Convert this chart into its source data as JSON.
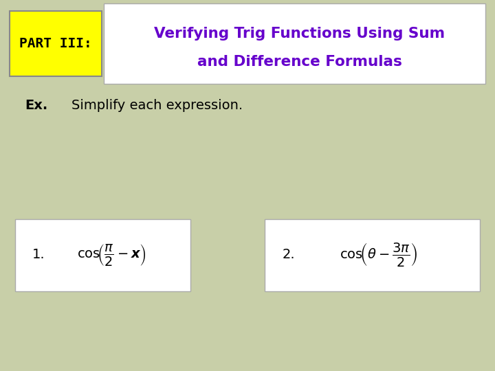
{
  "bg_color": "#c8cfa8",
  "header_box_color": "#ffffff",
  "part_label": "PART III:",
  "part_label_bg": "#ffff00",
  "part_label_color": "#000000",
  "title_line1": "Verifying Trig Functions Using Sum",
  "title_line2": "and Difference Formulas",
  "title_color": "#6600cc",
  "ex_label": "Ex.",
  "ex_text": "Simplify each expression.",
  "ex_color": "#000000",
  "expr1_num": "1.",
  "expr2_num": "2.",
  "box_color": "#ffffff",
  "expr_color": "#000000"
}
